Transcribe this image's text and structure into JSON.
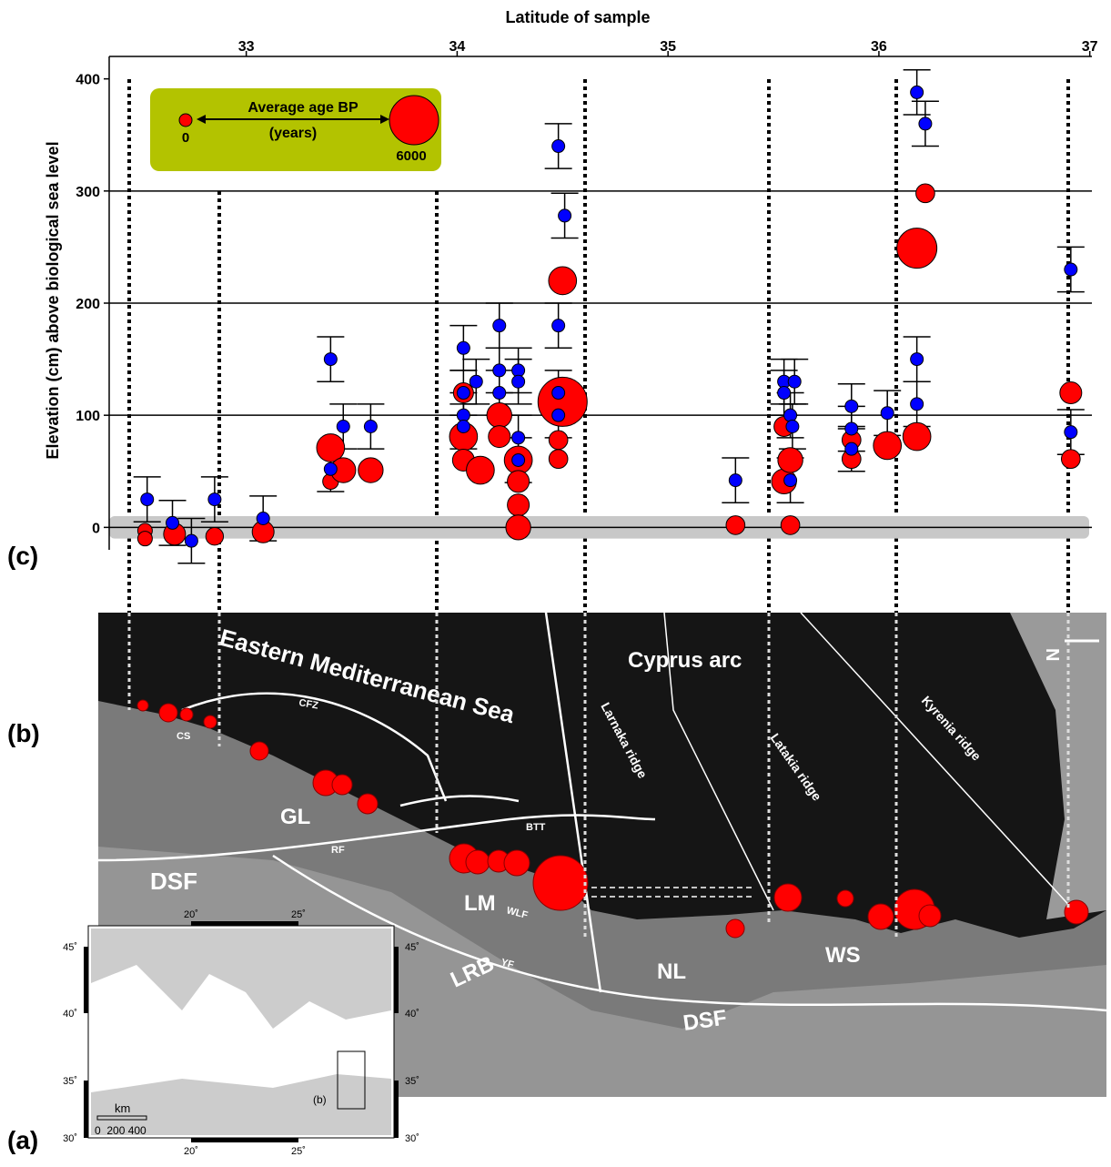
{
  "panel_labels": {
    "c": "(c)",
    "b": "(b)",
    "a": "(a)"
  },
  "chart_data": {
    "type": "scatter",
    "title": "Latitude of sample",
    "y_label": "Elevation (cm) above biological sea level",
    "xlim": [
      32.35,
      37.01
    ],
    "xticks": [
      33,
      34,
      35,
      36,
      37
    ],
    "ylim": [
      -20,
      420
    ],
    "yticks": [
      0,
      100,
      200,
      300,
      400
    ],
    "grid": true,
    "band": [
      -10,
      10
    ],
    "series": [
      {
        "color": "#0000ff",
        "x": [
          32.53,
          32.65,
          32.74,
          32.85,
          33.08,
          33.4,
          33.4,
          33.46,
          33.59,
          34.03,
          34.03,
          34.03,
          34.03,
          34.09,
          34.2,
          34.2,
          34.2,
          34.29,
          34.29,
          34.29,
          34.29,
          34.48,
          34.51,
          34.48,
          34.48,
          34.48,
          35.32,
          35.55,
          35.55,
          35.58,
          35.59,
          35.58,
          35.6,
          35.87,
          35.87,
          35.87,
          36.04,
          36.18,
          36.22,
          36.18,
          36.18,
          36.91,
          36.91
        ],
        "y": [
          25,
          4,
          -12,
          25,
          8,
          150,
          52,
          90,
          90,
          160,
          120,
          100,
          90,
          130,
          180,
          140,
          120,
          140,
          130,
          80,
          60,
          340,
          278,
          180,
          120,
          100,
          42,
          130,
          120,
          100,
          90,
          42,
          130,
          108,
          88,
          70,
          102,
          388,
          360,
          150,
          110,
          230,
          85
        ],
        "errors": [
          20,
          20,
          20,
          20,
          20,
          20,
          20,
          20,
          20,
          20,
          20,
          20,
          20,
          20,
          20,
          20,
          20,
          20,
          20,
          20,
          20,
          20,
          20,
          20,
          20,
          20,
          20,
          20,
          20,
          20,
          20,
          20,
          20,
          20,
          20,
          20,
          20,
          20,
          20,
          20,
          20,
          20,
          20
        ]
      },
      {
        "color": "#ff0000",
        "x": [
          32.52,
          32.52,
          32.66,
          32.85,
          33.08,
          33.4,
          33.4,
          33.46,
          33.59,
          34.03,
          34.03,
          34.11,
          34.03,
          34.2,
          34.2,
          34.29,
          34.29,
          34.29,
          34.29,
          34.5,
          34.5,
          34.48,
          34.48,
          35.32,
          35.55,
          35.55,
          35.58,
          35.58,
          35.87,
          35.87,
          36.04,
          36.18,
          36.18,
          36.22,
          36.91,
          36.91
        ],
        "y": [
          -3,
          -10,
          -6,
          -8,
          -4,
          71,
          41,
          51,
          51,
          81,
          60,
          51,
          120,
          100,
          81,
          60,
          41,
          20,
          0,
          220,
          112,
          78,
          61,
          2,
          90,
          41,
          60,
          2,
          78,
          61,
          73,
          81,
          249,
          298,
          120,
          61
        ],
        "sizes": [
          300,
          300,
          1500,
          800,
          1500,
          2500,
          500,
          2000,
          2000,
          2500,
          1500,
          2500,
          1200,
          2000,
          1500,
          2500,
          1500,
          1500,
          2000,
          2500,
          6000,
          1000,
          1000,
          1000,
          1200,
          2000,
          2000,
          1000,
          1000,
          1000,
          2500,
          2500,
          4500,
          1000,
          1500,
          1000
        ]
      }
    ],
    "size_legend": {
      "title": "Average age BP",
      "subtitle": "(years)",
      "ticks": [
        0,
        6000
      ]
    }
  },
  "map": {
    "sea": "Eastern Mediterranean Sea",
    "arc": "Cyprus arc",
    "cfz": "CFZ",
    "cs": "CS",
    "gl": "GL",
    "btt": "BTT",
    "rf": "RF",
    "dsf": "DSF",
    "lm": "LM",
    "wlf": "WLF",
    "larnaka": "Larnaka ridge",
    "latakia": "Latakia ridge",
    "kyrenia": "Kyrenia ridge",
    "lrb": "LRB",
    "yf": "YF",
    "nl": "NL",
    "ws": "WS",
    "north": "N"
  },
  "inset": {
    "x_labels": [
      "20˚",
      "25˚"
    ],
    "y_labels": [
      "45˚",
      "40˚",
      "35˚",
      "30˚"
    ],
    "scale_unit": "km",
    "scale_labels": "0  200 400",
    "box_label": "(b)"
  }
}
